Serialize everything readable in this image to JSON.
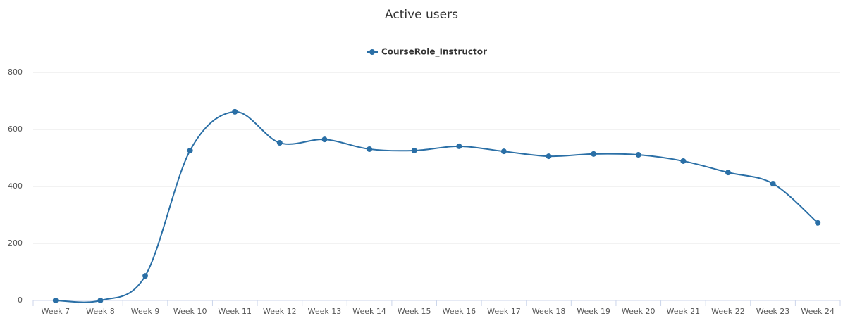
{
  "chart_data": {
    "type": "line",
    "title": "Active users",
    "categories": [
      "Week 7",
      "Week 8",
      "Week 9",
      "Week 10",
      "Week 11",
      "Week 12",
      "Week 13",
      "Week 14",
      "Week 15",
      "Week 16",
      "Week 17",
      "Week 18",
      "Week 19",
      "Week 20",
      "Week 21",
      "Week 22",
      "Week 23",
      "Week 24"
    ],
    "series": [
      {
        "name": "CourseRole_Instructor",
        "color": "#2a6fa6",
        "values": [
          0,
          0,
          86,
          526,
          662,
          553,
          565,
          531,
          526,
          541,
          523,
          506,
          514,
          511,
          489,
          449,
          410,
          272
        ]
      }
    ],
    "ylim": [
      0,
      800
    ],
    "yticks": [
      0,
      200,
      400,
      600,
      800
    ],
    "grid": true,
    "smooth": true,
    "legend": "top"
  }
}
